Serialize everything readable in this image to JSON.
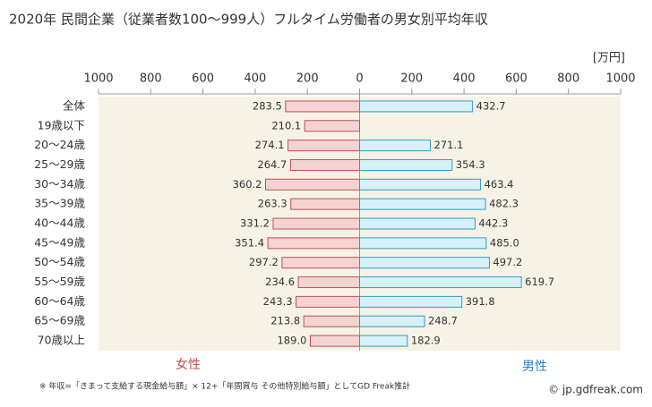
{
  "chart_data": {
    "type": "butterfly",
    "title": "2020年 民間企業（従業者数100〜999人）フルタイム労働者の男女別平均年収",
    "unit": "[万円]",
    "categories": [
      "全体",
      "19歳以下",
      "20〜24歳",
      "25〜29歳",
      "30〜34歳",
      "35〜39歳",
      "40〜44歳",
      "45〜49歳",
      "50〜54歳",
      "55〜59歳",
      "60〜64歳",
      "65〜69歳",
      "70歳以上"
    ],
    "series": [
      {
        "name": "女性",
        "color": "#f5d3d3",
        "stroke": "#c0504d",
        "side": "left",
        "values": [
          283.5,
          210.1,
          274.1,
          264.7,
          360.2,
          263.3,
          331.2,
          351.4,
          297.2,
          234.6,
          243.3,
          213.8,
          189.0
        ],
        "value_labels": [
          "283.5",
          "210.1",
          "274.1",
          "264.7",
          "360.2",
          "263.3",
          "331.2",
          "351.4",
          "297.2",
          "234.6",
          "243.3",
          "213.8",
          "189.0"
        ]
      },
      {
        "name": "男性",
        "color": "#d8f1f8",
        "stroke": "#2a9fc9",
        "side": "right",
        "values": [
          432.7,
          null,
          271.1,
          354.3,
          463.4,
          482.3,
          442.3,
          485.0,
          497.2,
          619.7,
          391.8,
          248.7,
          182.9
        ],
        "value_labels": [
          "432.7",
          null,
          "271.1",
          "354.3",
          "463.4",
          "482.3",
          "442.3",
          "485.0",
          "497.2",
          "619.7",
          "391.8",
          "248.7",
          "182.9"
        ]
      }
    ],
    "xlim": [
      -1000,
      1000
    ],
    "xticks": [
      {
        "value": -1000,
        "label": "1000"
      },
      {
        "value": -800,
        "label": "800"
      },
      {
        "value": -600,
        "label": "600"
      },
      {
        "value": -400,
        "label": "400"
      },
      {
        "value": -200,
        "label": "200"
      },
      0,
      200,
      400,
      600,
      800,
      1000
    ],
    "footnote": "※ 年収=「きまって支給する現金給与額」× 12+「年間賞与 その他特別給与額」としてGD Freak推計",
    "source": "© jp.gdfreak.com"
  }
}
